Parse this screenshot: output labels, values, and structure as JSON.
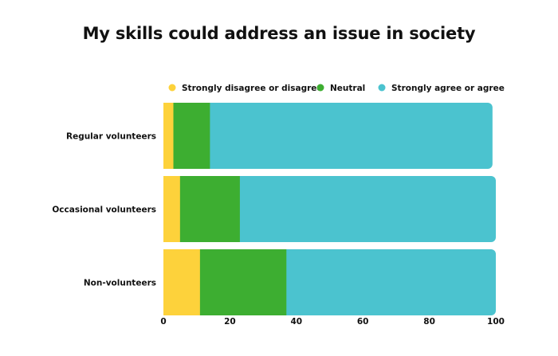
{
  "chart_data": {
    "type": "bar",
    "orientation": "horizontal",
    "stacked": true,
    "title": "My skills could address an issue in society",
    "categories": [
      "Regular volunteers",
      "Occasional volunteers",
      "Non-volunteers"
    ],
    "series": [
      {
        "name": "Strongly disagree or disagree",
        "color": "#FDD23B",
        "values": [
          3,
          5,
          11
        ]
      },
      {
        "name": "Neutral",
        "color": "#3DAE31",
        "values": [
          11,
          18,
          26
        ]
      },
      {
        "name": "Strongly agree or agree",
        "color": "#4BC3CF",
        "values": [
          85,
          77,
          63
        ]
      }
    ],
    "xlim": [
      0,
      100
    ],
    "xticks": [
      0,
      20,
      40,
      60,
      80,
      100
    ],
    "xtick_labels": [
      "0",
      "20",
      "40",
      "60",
      "80",
      "100"
    ],
    "grid": false,
    "legend": "top"
  }
}
